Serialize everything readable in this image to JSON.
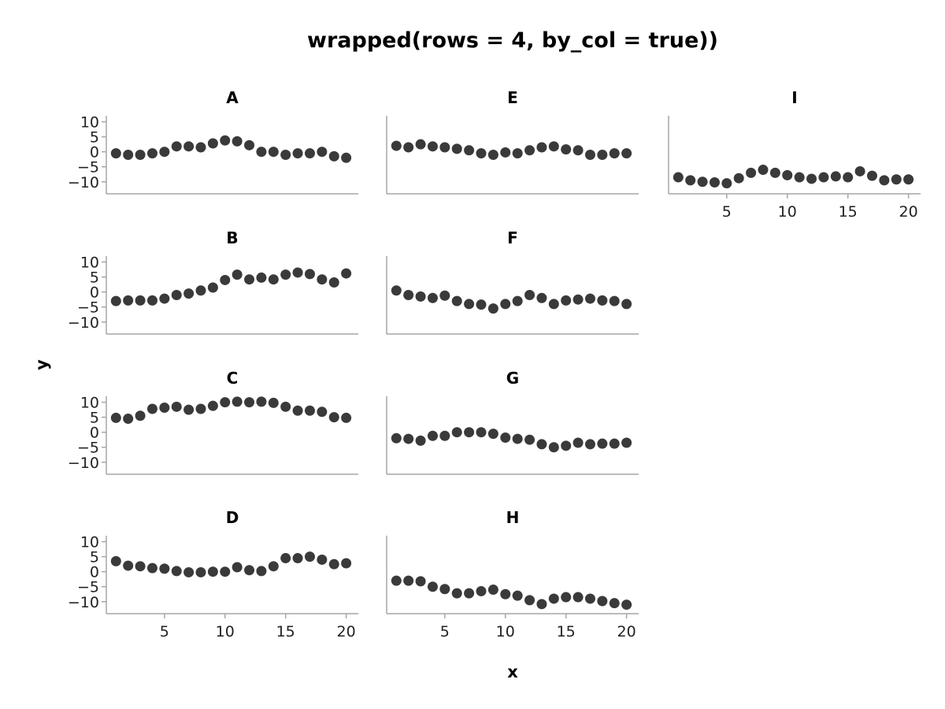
{
  "chart_data": {
    "type": "scatter",
    "title": "wrapped(rows = 4, by_col = true))",
    "xlabel": "x",
    "ylabel": "y",
    "xlim": [
      0.2,
      21
    ],
    "ylim": [
      -14,
      12
    ],
    "xticks": [
      5,
      10,
      15,
      20
    ],
    "yticks": [
      10,
      5,
      0,
      -5,
      -10
    ],
    "grid": false,
    "marker_color": "#3a3a3a",
    "axis_color": "#a6a6a6",
    "x": [
      1,
      2,
      3,
      4,
      5,
      6,
      7,
      8,
      9,
      10,
      11,
      12,
      13,
      14,
      15,
      16,
      17,
      18,
      19,
      20
    ],
    "panels": [
      {
        "label": "A",
        "values": [
          -0.5,
          -1,
          -1,
          -0.5,
          0,
          1.8,
          1.8,
          1.5,
          2.8,
          3.8,
          3.5,
          2.2,
          0,
          0,
          -1,
          -0.5,
          -0.5,
          0,
          -1.5,
          -2
        ]
      },
      {
        "label": "B",
        "values": [
          -3,
          -2.8,
          -2.8,
          -2.8,
          -2.2,
          -1,
          -0.5,
          0.5,
          1.5,
          4,
          5.8,
          4.2,
          4.8,
          4.2,
          5.8,
          6.5,
          6,
          4.2,
          3.2,
          6.2
        ]
      },
      {
        "label": "C",
        "values": [
          4.8,
          4.5,
          5.5,
          7.8,
          8.2,
          8.5,
          7.5,
          7.8,
          8.8,
          10,
          10.2,
          10,
          10.2,
          9.8,
          8.5,
          7.2,
          7.2,
          6.8,
          5,
          4.8
        ]
      },
      {
        "label": "D",
        "values": [
          3.5,
          2,
          1.8,
          1.2,
          1,
          0.2,
          -0.2,
          -0.2,
          0,
          0,
          1.5,
          0.5,
          0.2,
          1.8,
          4.5,
          4.5,
          5,
          4,
          2.5,
          2.8
        ]
      },
      {
        "label": "E",
        "values": [
          2,
          1.5,
          2.5,
          1.8,
          1.5,
          1,
          0.5,
          -0.5,
          -1,
          -0.2,
          -0.5,
          0.5,
          1.5,
          1.8,
          0.8,
          0.5,
          -1,
          -1,
          -0.5,
          -0.5
        ]
      },
      {
        "label": "F",
        "values": [
          0.5,
          -1,
          -1.5,
          -2,
          -1.2,
          -3,
          -4,
          -4.2,
          -5.5,
          -4,
          -3,
          -1,
          -2,
          -4,
          -2.8,
          -2.5,
          -2.2,
          -2.8,
          -3,
          -4
        ]
      },
      {
        "label": "G",
        "values": [
          -2,
          -2.2,
          -2.8,
          -1.2,
          -1.2,
          0,
          0,
          0,
          -0.5,
          -1.8,
          -2.2,
          -2.5,
          -4,
          -5,
          -4.5,
          -3.5,
          -4,
          -3.8,
          -3.8,
          -3.5
        ]
      },
      {
        "label": "H",
        "values": [
          -3,
          -3,
          -3.2,
          -5,
          -5.8,
          -7.2,
          -7.2,
          -6.5,
          -6,
          -7.5,
          -8,
          -9.5,
          -10.8,
          -9,
          -8.5,
          -8.5,
          -9,
          -9.8,
          -10.5,
          -11
        ]
      },
      {
        "label": "I",
        "values": [
          -8.5,
          -9.5,
          -10,
          -10.2,
          -10.5,
          -8.8,
          -7,
          -6,
          -7,
          -7.8,
          -8.5,
          -9,
          -8.5,
          -8.2,
          -8.5,
          -6.5,
          -8,
          -9.5,
          -9.2,
          -9.2
        ]
      }
    ]
  }
}
